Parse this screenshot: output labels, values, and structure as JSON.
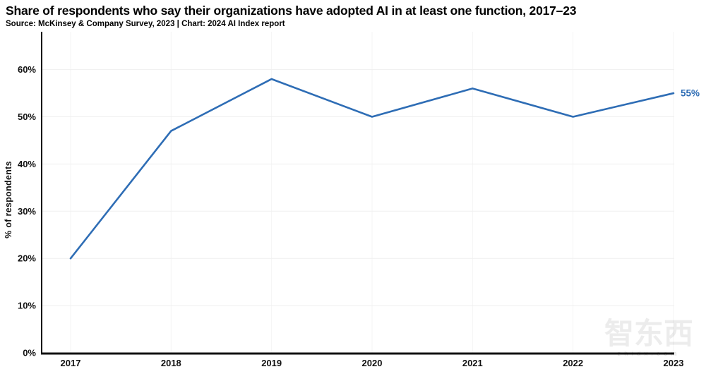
{
  "title": "Share of respondents who say their organizations have adopted AI in at least one function, 2017–23",
  "subtitle": "Source: McKinsey & Company Survey, 2023 | Chart: 2024 AI Index report",
  "watermark": {
    "text": "智东西",
    "subtext": "zhidx.com"
  },
  "chart_data": {
    "type": "line",
    "title": "Share of respondents who say their organizations have adopted AI in at least one function, 2017–23",
    "categories": [
      "2017",
      "2018",
      "2019",
      "2020",
      "2021",
      "2022",
      "2023"
    ],
    "series": [
      {
        "name": "% of respondents whose organizations adopted AI in at least one function",
        "values": [
          20,
          47,
          58,
          50,
          56,
          50,
          55
        ]
      }
    ],
    "xlabel": "",
    "ylabel": "% of respondents",
    "ylim": [
      0,
      68
    ],
    "yticks": [
      0,
      10,
      20,
      30,
      40,
      50,
      60
    ],
    "ytick_labels": [
      "0%",
      "10%",
      "20%",
      "30%",
      "40%",
      "50%",
      "60%"
    ],
    "end_label": "55%",
    "grid": true,
    "legend_position": "none",
    "line_color": "#2e6db5",
    "axis_color": "#111111",
    "grid_color_h": "#efefef",
    "grid_color_v": "#f4f4f4"
  }
}
